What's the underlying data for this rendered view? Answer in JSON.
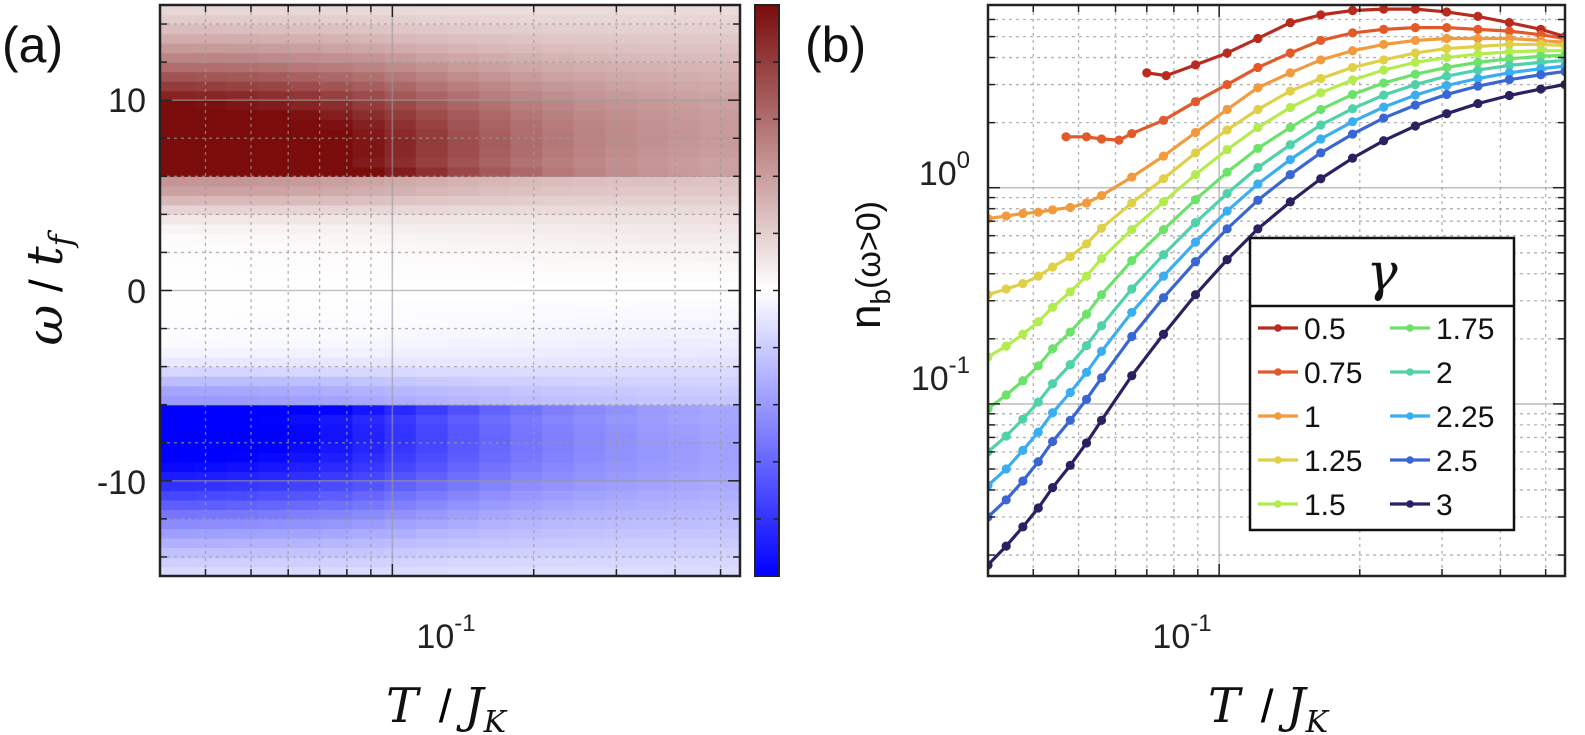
{
  "panel_a": {
    "label": "(a)",
    "xlabel_T": "T",
    "xlabel_J": "J",
    "xlabel_K": "K",
    "ylabel_omega": "ω",
    "ylabel_t": "t",
    "ylabel_f": "f",
    "x_tick_base": "10",
    "x_tick_exp": "-1",
    "y_ticks": [
      "10",
      "0",
      "-10"
    ]
  },
  "panel_b": {
    "label": "(b)",
    "xlabel_T": "T",
    "xlabel_J": "J",
    "xlabel_K": "K",
    "ylabel_n": "n",
    "ylabel_sub": "b",
    "ylabel_arg": "(ω>0)",
    "x_tick_base": "10",
    "x_tick_exp": "-1",
    "y_tick_base": "10",
    "y_tick_exps": [
      "0",
      "-1"
    ],
    "legend_title": "γ"
  },
  "colors": {
    "heat_positive": "#7a0c0c",
    "heat_mid": "#ffffff",
    "heat_negative": "#0000ff",
    "grid": "#9a9a9a",
    "axis": "#222222"
  },
  "chart_data": [
    {
      "type": "heatmap",
      "panel": "a",
      "x_scale": "log",
      "xlim": [
        0.032,
        0.55
      ],
      "ylim": [
        -15,
        15
      ],
      "colorbar": true,
      "colormap": [
        "#0000ff",
        "#ffffff",
        "#7a0c0c"
      ],
      "x_ticks": [
        0.1
      ],
      "y_ticks": [
        10,
        0,
        -10
      ],
      "x_centers": [
        0.035,
        0.041,
        0.048,
        0.056,
        0.065,
        0.076,
        0.089,
        0.104,
        0.121,
        0.142,
        0.165,
        0.193,
        0.225,
        0.263,
        0.307,
        0.358,
        0.418,
        0.488
      ],
      "features": {
        "positive_band": {
          "omega_range": [
            5.8,
            13
          ],
          "peak_omega": 7,
          "peak_T": 0.05
        },
        "negative_band": {
          "omega_range": [
            -13,
            -5.8
          ],
          "peak_omega": -7,
          "peak_T": 0.05
        }
      },
      "grid": true
    },
    {
      "type": "line",
      "panel": "b",
      "x_scale": "log",
      "y_scale": "log",
      "xlim": [
        0.032,
        0.55
      ],
      "ylim": [
        0.016,
        7
      ],
      "x_ticks": [
        0.1
      ],
      "y_ticks": [
        1,
        0.1
      ],
      "grid": true,
      "legend_title": "γ",
      "legend_position": "lower-right",
      "series": [
        {
          "name": "0.5",
          "color": "#b82b1e",
          "x": [
            0.07,
            0.077,
            0.089,
            0.104,
            0.121,
            0.142,
            0.165,
            0.193,
            0.225,
            0.263,
            0.307,
            0.358,
            0.418,
            0.488,
            0.55
          ],
          "y": [
            3.4,
            3.3,
            3.7,
            4.2,
            4.9,
            5.8,
            6.3,
            6.6,
            6.7,
            6.7,
            6.5,
            6.2,
            5.8,
            5.4,
            5.0
          ]
        },
        {
          "name": "0.75",
          "color": "#e25a2a",
          "x": [
            0.047,
            0.052,
            0.056,
            0.061,
            0.065,
            0.076,
            0.089,
            0.104,
            0.121,
            0.142,
            0.165,
            0.193,
            0.225,
            0.263,
            0.307,
            0.358,
            0.418,
            0.488,
            0.55
          ],
          "y": [
            1.72,
            1.72,
            1.68,
            1.66,
            1.78,
            2.05,
            2.5,
            3.0,
            3.6,
            4.2,
            4.8,
            5.2,
            5.4,
            5.5,
            5.5,
            5.4,
            5.3,
            5.1,
            4.9
          ]
        },
        {
          "name": "1",
          "color": "#f39a3c",
          "x": [
            0.032,
            0.035,
            0.038,
            0.041,
            0.044,
            0.048,
            0.052,
            0.056,
            0.065,
            0.076,
            0.089,
            0.104,
            0.121,
            0.142,
            0.165,
            0.193,
            0.225,
            0.263,
            0.307,
            0.358,
            0.418,
            0.488,
            0.55
          ],
          "y": [
            0.72,
            0.74,
            0.76,
            0.77,
            0.79,
            0.81,
            0.85,
            0.92,
            1.12,
            1.4,
            1.8,
            2.3,
            2.9,
            3.4,
            3.9,
            4.3,
            4.6,
            4.8,
            4.9,
            4.9,
            4.9,
            4.8,
            4.7
          ]
        },
        {
          "name": "1.25",
          "color": "#dfd048",
          "x": [
            0.032,
            0.035,
            0.038,
            0.041,
            0.044,
            0.048,
            0.052,
            0.056,
            0.065,
            0.076,
            0.089,
            0.104,
            0.121,
            0.142,
            0.165,
            0.193,
            0.225,
            0.263,
            0.307,
            0.358,
            0.418,
            0.488,
            0.55
          ],
          "y": [
            0.32,
            0.34,
            0.36,
            0.39,
            0.43,
            0.48,
            0.55,
            0.65,
            0.85,
            1.1,
            1.45,
            1.85,
            2.3,
            2.8,
            3.2,
            3.6,
            3.9,
            4.2,
            4.4,
            4.5,
            4.6,
            4.6,
            4.55
          ]
        },
        {
          "name": "1.5",
          "color": "#b3ec4f",
          "x": [
            0.032,
            0.035,
            0.038,
            0.041,
            0.044,
            0.048,
            0.052,
            0.056,
            0.065,
            0.076,
            0.089,
            0.104,
            0.121,
            0.142,
            0.165,
            0.193,
            0.225,
            0.263,
            0.307,
            0.358,
            0.418,
            0.488,
            0.55
          ],
          "y": [
            0.165,
            0.185,
            0.21,
            0.24,
            0.28,
            0.33,
            0.39,
            0.47,
            0.64,
            0.86,
            1.15,
            1.5,
            1.9,
            2.35,
            2.75,
            3.15,
            3.5,
            3.8,
            4.0,
            4.15,
            4.25,
            4.3,
            4.3
          ]
        },
        {
          "name": "1.75",
          "color": "#6de26a",
          "x": [
            0.032,
            0.035,
            0.038,
            0.041,
            0.044,
            0.048,
            0.052,
            0.056,
            0.065,
            0.076,
            0.089,
            0.104,
            0.121,
            0.142,
            0.165,
            0.193,
            0.225,
            0.263,
            0.307,
            0.358,
            0.418,
            0.488,
            0.55
          ],
          "y": [
            0.095,
            0.11,
            0.128,
            0.15,
            0.18,
            0.215,
            0.26,
            0.32,
            0.46,
            0.64,
            0.88,
            1.18,
            1.52,
            1.9,
            2.3,
            2.7,
            3.05,
            3.35,
            3.6,
            3.8,
            3.95,
            4.05,
            4.1
          ]
        },
        {
          "name": "2",
          "color": "#4fd1a9",
          "x": [
            0.032,
            0.035,
            0.038,
            0.041,
            0.044,
            0.048,
            0.052,
            0.056,
            0.065,
            0.076,
            0.089,
            0.104,
            0.121,
            0.142,
            0.165,
            0.193,
            0.225,
            0.263,
            0.307,
            0.358,
            0.418,
            0.488,
            0.55
          ],
          "y": [
            0.06,
            0.071,
            0.085,
            0.102,
            0.124,
            0.152,
            0.186,
            0.23,
            0.34,
            0.49,
            0.69,
            0.94,
            1.24,
            1.58,
            1.95,
            2.32,
            2.68,
            3.0,
            3.28,
            3.5,
            3.68,
            3.8,
            3.88
          ]
        },
        {
          "name": "2.25",
          "color": "#3aaef0",
          "x": [
            0.032,
            0.035,
            0.038,
            0.041,
            0.044,
            0.048,
            0.052,
            0.056,
            0.065,
            0.076,
            0.089,
            0.104,
            0.121,
            0.142,
            0.165,
            0.193,
            0.225,
            0.263,
            0.307,
            0.358,
            0.418,
            0.488,
            0.55
          ],
          "y": [
            0.042,
            0.05,
            0.061,
            0.074,
            0.091,
            0.113,
            0.14,
            0.175,
            0.265,
            0.39,
            0.56,
            0.78,
            1.04,
            1.35,
            1.68,
            2.02,
            2.36,
            2.68,
            2.97,
            3.2,
            3.4,
            3.55,
            3.65
          ]
        },
        {
          "name": "2.5",
          "color": "#3a66d4",
          "x": [
            0.032,
            0.035,
            0.038,
            0.041,
            0.044,
            0.048,
            0.052,
            0.056,
            0.065,
            0.076,
            0.089,
            0.104,
            0.121,
            0.142,
            0.165,
            0.193,
            0.225,
            0.263,
            0.307,
            0.358,
            0.418,
            0.488,
            0.55
          ],
          "y": [
            0.03,
            0.036,
            0.044,
            0.054,
            0.067,
            0.084,
            0.105,
            0.132,
            0.205,
            0.31,
            0.455,
            0.645,
            0.875,
            1.15,
            1.45,
            1.77,
            2.1,
            2.41,
            2.7,
            2.95,
            3.16,
            3.33,
            3.45
          ]
        },
        {
          "name": "3",
          "color": "#2a2260",
          "x": [
            0.032,
            0.035,
            0.038,
            0.041,
            0.044,
            0.048,
            0.052,
            0.056,
            0.065,
            0.076,
            0.089,
            0.104,
            0.121,
            0.142,
            0.165,
            0.193,
            0.225,
            0.263,
            0.307,
            0.358,
            0.418,
            0.488,
            0.55
          ],
          "y": [
            0.018,
            0.022,
            0.027,
            0.033,
            0.041,
            0.052,
            0.066,
            0.084,
            0.135,
            0.21,
            0.32,
            0.465,
            0.645,
            0.86,
            1.1,
            1.37,
            1.65,
            1.93,
            2.2,
            2.45,
            2.67,
            2.86,
            3.0
          ]
        }
      ]
    }
  ]
}
